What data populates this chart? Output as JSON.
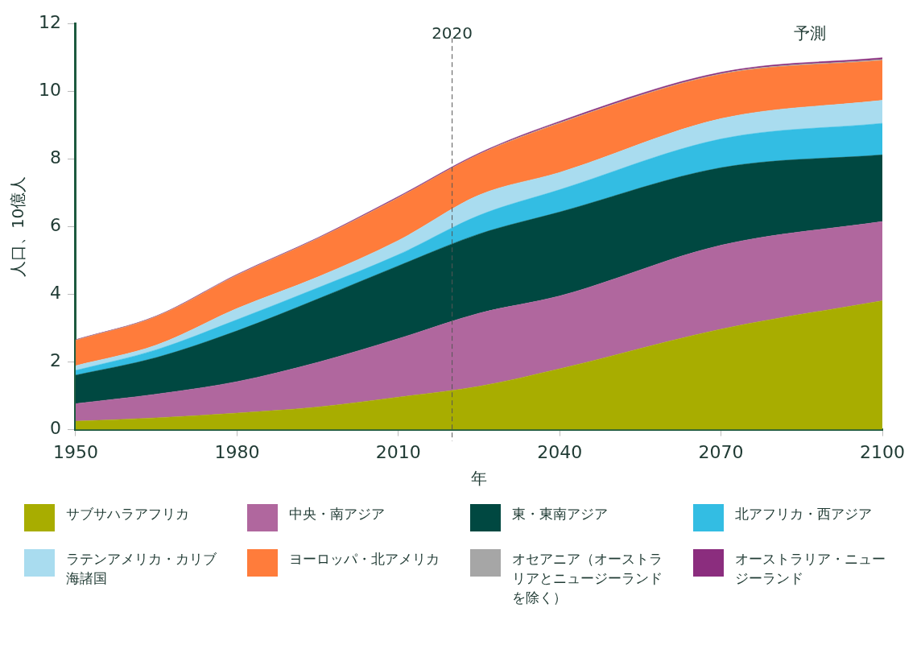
{
  "chart_data": {
    "type": "area",
    "stacked": true,
    "xlabel": "年",
    "ylabel": "人口、10億人",
    "annotations": [
      "予測"
    ],
    "x": [
      1950,
      1965,
      1980,
      1995,
      2010,
      2025,
      2040,
      2070,
      2100
    ],
    "xlim": [
      1950,
      2100
    ],
    "xticks": [
      1950,
      1980,
      2010,
      2040,
      2070,
      2100
    ],
    "ylim": [
      0,
      12
    ],
    "yticks": [
      0,
      2,
      4,
      6,
      8,
      10,
      12
    ],
    "grid": false,
    "legend": "bottom",
    "ref_lines": [
      {
        "axis": "x",
        "value": 2020,
        "label": "2020",
        "color": "#555555",
        "line_style": "dashed"
      }
    ],
    "series": [
      {
        "name": "サブサハラアフリカ",
        "color": "#a8ad00",
        "values": [
          0.25,
          0.35,
          0.49,
          0.67,
          0.96,
          1.28,
          1.8,
          2.97,
          3.81
        ]
      },
      {
        "name": "中央・南アジア",
        "color": "#b0679e",
        "values": [
          0.52,
          0.7,
          0.93,
          1.32,
          1.73,
          2.16,
          2.15,
          2.48,
          2.34
        ]
      },
      {
        "name": "東・東南アジア",
        "color": "#004841",
        "values": [
          0.84,
          1.08,
          1.5,
          1.87,
          2.15,
          2.34,
          2.48,
          2.29,
          1.97
        ]
      },
      {
        "name": "北アフリカ・西アジア",
        "color": "#33bde3",
        "values": [
          0.14,
          0.23,
          0.33,
          0.33,
          0.33,
          0.55,
          0.66,
          0.85,
          0.93
        ]
      },
      {
        "name": "ラテンアメリカ・カリブ海諸国",
        "color": "#a9dcef",
        "values": [
          0.14,
          0.14,
          0.33,
          0.32,
          0.42,
          0.6,
          0.51,
          0.6,
          0.68
        ]
      },
      {
        "name": "ヨーロッパ・北アメリカ",
        "color": "#ff7c3b",
        "values": [
          0.75,
          0.84,
          0.98,
          1.13,
          1.26,
          1.2,
          1.45,
          1.31,
          1.18
        ]
      },
      {
        "name": "オセアニア（オーストラリアとニュージーランドを除く）",
        "color": "#a6a6a6",
        "values": [
          0.01,
          0.01,
          0.01,
          0.01,
          0.01,
          0.01,
          0.02,
          0.02,
          0.03
        ]
      },
      {
        "name": "オーストラリア・ニュージーランド",
        "color": "#8b2d7e",
        "values": [
          0.01,
          0.01,
          0.02,
          0.02,
          0.03,
          0.03,
          0.04,
          0.04,
          0.05
        ]
      }
    ]
  }
}
